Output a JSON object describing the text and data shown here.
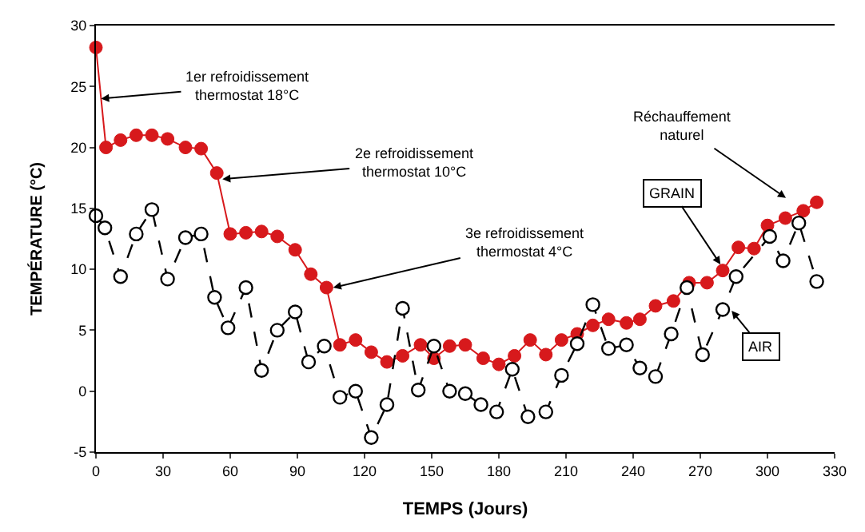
{
  "chart_data": {
    "type": "line",
    "xlabel": "TEMPS (Jours)",
    "ylabel": "TEMPÉRATURE (°C)",
    "xlim": [
      0,
      330
    ],
    "xticks": [
      0,
      30,
      60,
      90,
      120,
      150,
      180,
      210,
      240,
      270,
      300,
      330
    ],
    "ylim": [
      -5,
      30
    ],
    "yticks": [
      -5,
      0,
      5,
      10,
      15,
      20,
      25,
      30
    ],
    "marker": "circle",
    "series": [
      {
        "color": "#d7191c",
        "line_style": "solid",
        "x": [
          0,
          4.5,
          11,
          18,
          25,
          32,
          40,
          47,
          54,
          60,
          67,
          74,
          81,
          89,
          96,
          103,
          109,
          116,
          123,
          130,
          137,
          145,
          151,
          158,
          165,
          173,
          180,
          187,
          194,
          201,
          208,
          215,
          222,
          229,
          237,
          243,
          250,
          258,
          265,
          273,
          280,
          287,
          294,
          300,
          308,
          316,
          322
        ],
        "values": [
          28.2,
          20.0,
          20.6,
          21.0,
          21.0,
          20.7,
          20.0,
          19.9,
          17.9,
          12.9,
          13.0,
          13.1,
          12.7,
          11.6,
          9.6,
          8.5,
          3.8,
          4.2,
          3.2,
          2.4,
          2.9,
          3.8,
          2.7,
          3.7,
          3.8,
          2.7,
          2.2,
          2.9,
          4.2,
          3.0,
          4.2,
          4.7,
          5.4,
          5.9,
          5.6,
          5.9,
          7.0,
          7.4,
          8.9,
          8.9,
          9.9,
          11.8,
          11.7,
          13.6,
          14.2,
          14.8,
          15.5
        ]
      },
      {
        "color": "#000000",
        "line_style": "dashed",
        "x": [
          0,
          4,
          11,
          18,
          25,
          32,
          40,
          47,
          53,
          59,
          67,
          74,
          81,
          89,
          95,
          102,
          109,
          116,
          123,
          130,
          137,
          144,
          151,
          158,
          165,
          172,
          179,
          186,
          193,
          201,
          208,
          215,
          222,
          229,
          237,
          243,
          250,
          257,
          264,
          271,
          280,
          286,
          301,
          307,
          314,
          322
        ],
        "values": [
          14.4,
          13.4,
          9.4,
          12.9,
          14.9,
          9.2,
          12.6,
          12.9,
          7.7,
          5.2,
          8.5,
          1.7,
          5.0,
          6.5,
          2.4,
          3.7,
          -0.5,
          0.0,
          -3.8,
          -1.1,
          6.8,
          0.1,
          3.7,
          0.0,
          -0.2,
          -1.1,
          -1.7,
          1.8,
          -2.1,
          -1.7,
          1.3,
          3.9,
          7.1,
          3.5,
          3.8,
          1.9,
          1.2,
          4.7,
          8.5,
          3.0,
          6.7,
          9.4,
          12.7,
          10.7,
          13.8,
          9.0
        ]
      }
    ],
    "annotations": [
      {
        "text": "1er refroidissement\nthermostat 18°C",
        "x": 2.3,
        "y": 24.0
      },
      {
        "text": "2e refroidissement\nthermostat 10°C",
        "x": 56.5,
        "y": 17.4
      },
      {
        "text": "3e refroidissement\nthermostat 4°C",
        "x": 106,
        "y": 8.5
      },
      "Réchauffement\nnaturel",
      {
        "text": "GRAIN",
        "x": 279,
        "y": 10.4
      },
      {
        "text": "AIR",
        "x": 284,
        "y": 6.6
      }
    ]
  }
}
